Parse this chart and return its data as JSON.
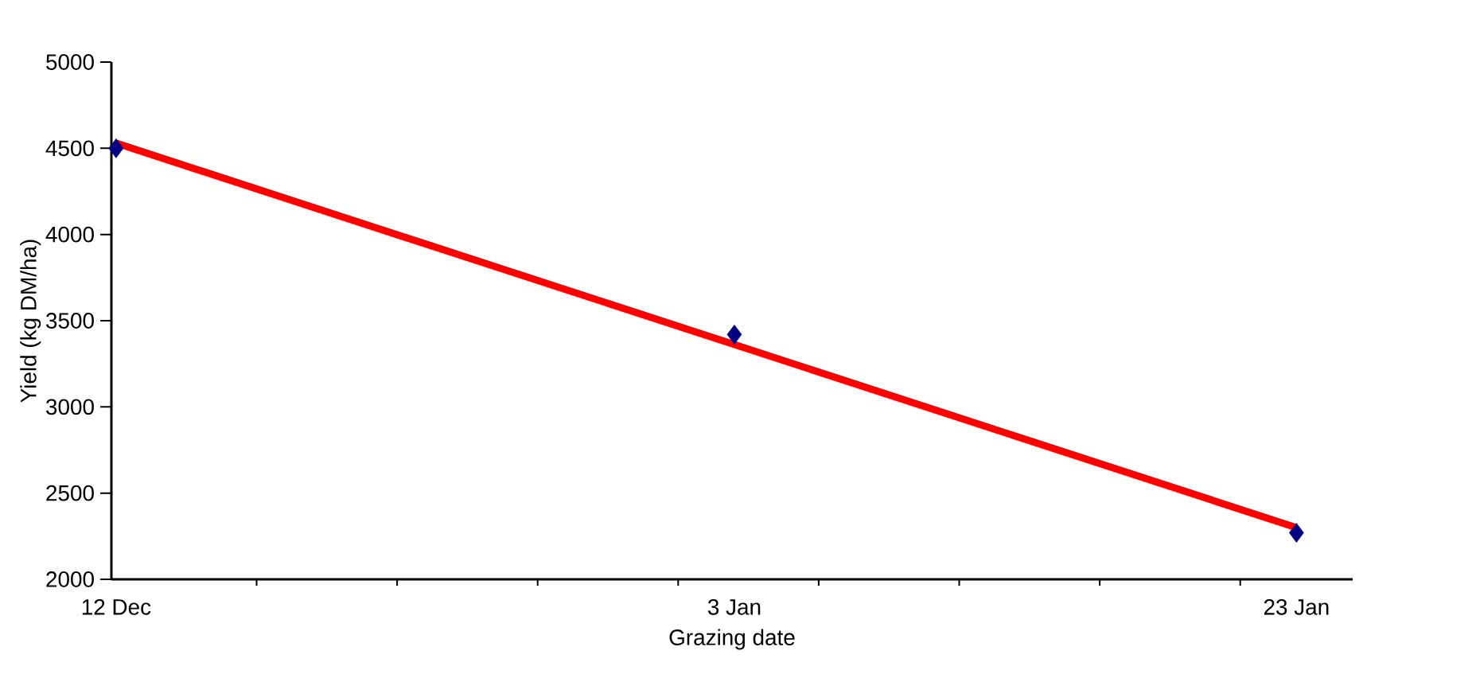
{
  "chart_data": {
    "type": "scatter",
    "xlabel": "Grazing date",
    "ylabel": "Yield (kg DM/ha)",
    "xlim": [
      "2000-12-11T20:00",
      "2001-01-25"
    ],
    "ylim": [
      2000,
      5000
    ],
    "xticks": [
      {
        "value": "2000-12-12",
        "label": "12 Dec"
      },
      {
        "value": "2000-12-17",
        "label": null
      },
      {
        "value": "2000-12-22",
        "label": null
      },
      {
        "value": "2000-12-27",
        "label": null
      },
      {
        "value": "2001-01-01",
        "label": null
      },
      {
        "value": "2001-01-03",
        "label": "3 Jan"
      },
      {
        "value": "2001-01-06",
        "label": null
      },
      {
        "value": "2001-01-11",
        "label": null
      },
      {
        "value": "2001-01-16",
        "label": null
      },
      {
        "value": "2001-01-21",
        "label": null
      },
      {
        "value": "2001-01-23",
        "label": "23 Jan"
      }
    ],
    "yticks": [
      2000,
      2500,
      3000,
      3500,
      4000,
      4500,
      5000
    ],
    "grid": false,
    "series": [
      {
        "color": "#000080",
        "marker": "diamond",
        "x": [
          "2000-12-12",
          "2001-01-03",
          "2001-01-23"
        ],
        "values": [
          4500,
          3420,
          2270
        ]
      },
      {
        "type": "line",
        "color": "#ff0000",
        "marker": "none",
        "line_style": "solid",
        "x": [
          "2000-12-12",
          "2001-01-23"
        ],
        "values": [
          4530,
          2300
        ]
      }
    ]
  }
}
